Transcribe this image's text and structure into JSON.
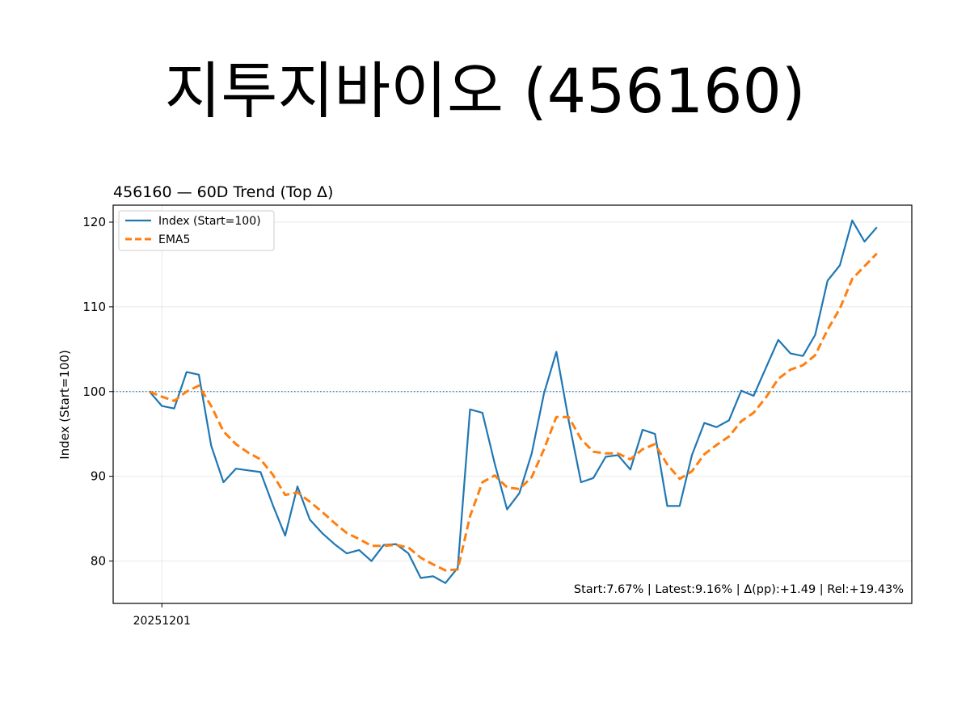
{
  "page": {
    "title": "지투지바이오 (456160)"
  },
  "chart_data": {
    "type": "line",
    "title": "456160 — 60D Trend (Top Δ)",
    "xlabel": "",
    "ylabel": "Index (Start=100)",
    "x_tick_labels": [
      {
        "index": 1,
        "label": "20251201"
      }
    ],
    "ylim": [
      75,
      122
    ],
    "y_ticks": [
      80,
      90,
      100,
      110,
      120
    ],
    "reference_line": {
      "y": 100,
      "style": "dotted"
    },
    "grid": true,
    "legend_position": "top-left",
    "annotation": "Start:7.67% | Latest:9.16% | Δ(pp):+1.49 | Rel:+19.43%",
    "series": [
      {
        "name": "Index (Start=100)",
        "color": "#1f77b4",
        "style": "solid",
        "values": [
          100.0,
          98.3,
          98.0,
          102.3,
          102.0,
          93.6,
          89.3,
          90.9,
          90.7,
          90.5,
          86.6,
          83.0,
          88.8,
          84.9,
          83.3,
          82.0,
          80.9,
          81.3,
          80.0,
          81.9,
          82.0,
          80.9,
          78.0,
          78.2,
          77.4,
          79.2,
          97.9,
          97.5,
          91.5,
          86.1,
          88.0,
          92.7,
          99.8,
          104.7,
          96.6,
          89.3,
          89.8,
          92.3,
          92.5,
          90.8,
          95.5,
          95.0,
          86.5,
          86.5,
          92.5,
          96.3,
          95.8,
          96.6,
          100.1,
          99.5,
          102.8,
          106.1,
          104.5,
          104.2,
          106.7,
          113.1,
          114.9,
          120.2,
          117.7,
          119.4
        ]
      },
      {
        "name": "EMA5",
        "color": "#ff7f0e",
        "style": "dashed",
        "values": [
          100.0,
          99.4,
          98.9,
          100.0,
          100.7,
          98.3,
          95.3,
          93.8,
          92.8,
          92.0,
          90.2,
          87.8,
          88.1,
          87.0,
          85.8,
          84.5,
          83.3,
          82.6,
          81.8,
          81.8,
          81.9,
          81.6,
          80.4,
          79.6,
          78.9,
          79.0,
          85.3,
          89.3,
          90.1,
          88.7,
          88.5,
          89.9,
          93.2,
          97.0,
          97.0,
          94.4,
          92.9,
          92.7,
          92.7,
          92.0,
          93.2,
          93.8,
          91.4,
          89.7,
          90.6,
          92.6,
          93.7,
          94.7,
          96.5,
          97.5,
          99.3,
          101.5,
          102.6,
          103.1,
          104.3,
          107.3,
          109.8,
          113.3,
          114.8,
          116.3
        ]
      }
    ]
  }
}
